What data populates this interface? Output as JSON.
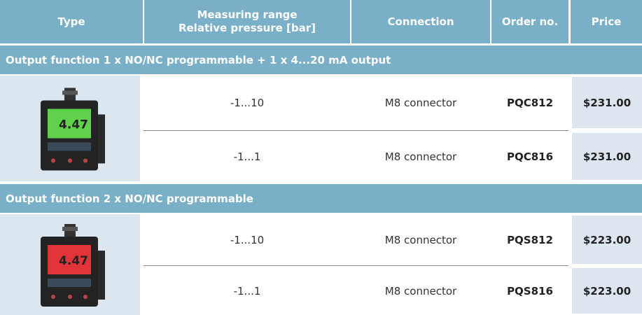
{
  "table": {
    "header": [
      "Type",
      [
        "Measuring range",
        "Relative pressure [bar]"
      ],
      "Connection",
      "Order no.",
      "Price"
    ],
    "sections": [
      {
        "title": "Output function 1 x NO/NC programmable + 1 x 4...20 mA output",
        "display": "4.47",
        "screen": "#5fd14a",
        "rows": [
          {
            "range": "-1...10",
            "connection": "M8 connector",
            "order": "PQC812",
            "price": "$231.00"
          },
          {
            "range": "-1...1",
            "connection": "M8 connector",
            "order": "PQC816",
            "price": "$231.00"
          }
        ]
      },
      {
        "title": "Output function 2 x NO/NC programmable",
        "display": "4.47",
        "screen": "#e0343a",
        "rows": [
          {
            "range": "-1...10",
            "connection": "M8 connector",
            "order": "PQS812",
            "price": "$223.00"
          },
          {
            "range": "-1...1",
            "connection": "M8 connector",
            "order": "PQS816",
            "price": "$223.00"
          }
        ]
      }
    ]
  }
}
